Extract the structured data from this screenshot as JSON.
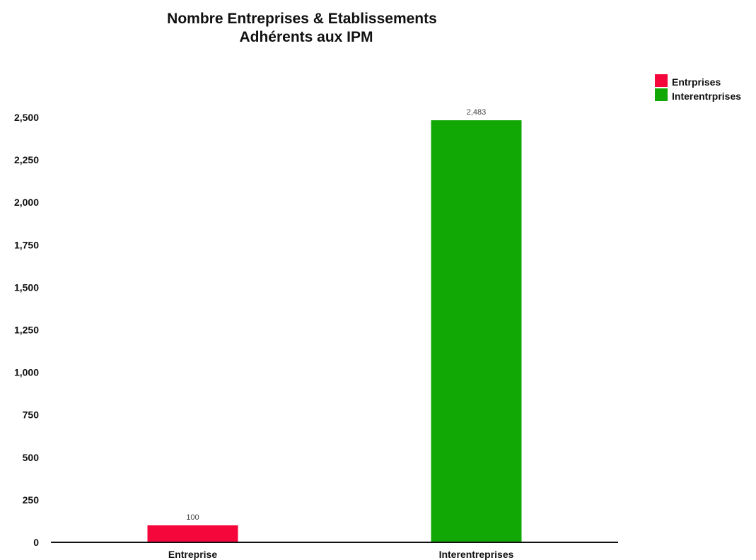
{
  "chart_data": {
    "type": "bar",
    "title_lines": [
      "Nombre Entreprises & Etablissements",
      "Adhérents aux IPM"
    ],
    "categories": [
      "Entreprise",
      "Interentreprises"
    ],
    "values": [
      100,
      2483
    ],
    "data_labels": [
      "100",
      "2,483"
    ],
    "colors": [
      "#f5073c",
      "#11a805"
    ],
    "legend": {
      "position": "top-right",
      "entries": [
        {
          "label": "Entrprises",
          "color": "#f5073c"
        },
        {
          "label": "Interentrprises",
          "color": "#11a805"
        }
      ]
    },
    "ylim": [
      0,
      2500
    ],
    "yticks": [
      0,
      250,
      500,
      750,
      1000,
      1250,
      1500,
      1750,
      2000,
      2250,
      2500
    ],
    "ytick_labels": [
      "0",
      "250",
      "500",
      "750",
      "1,000",
      "1,250",
      "1,500",
      "1,750",
      "2,000",
      "2,250",
      "2,500"
    ],
    "grid": false,
    "xlabel": "",
    "ylabel": ""
  }
}
